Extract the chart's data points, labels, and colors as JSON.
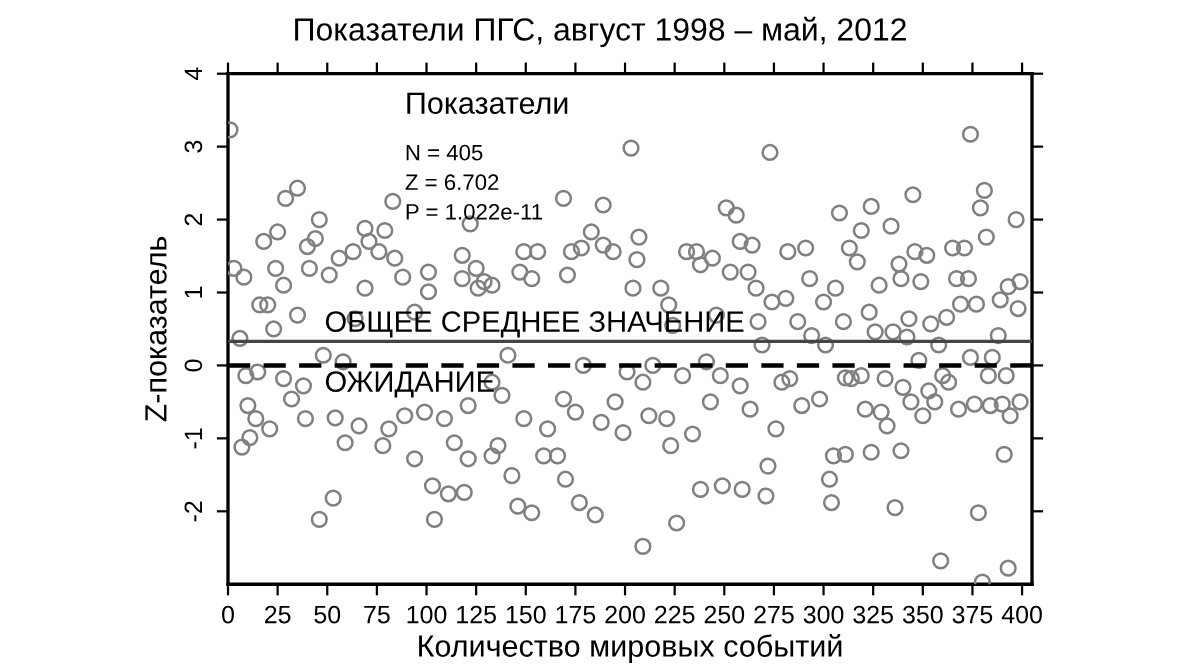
{
  "chart_data": {
    "type": "scatter",
    "title": "Показатели ПГС, август 1998 – май, 2012",
    "xlabel": "Количество мировых событий",
    "ylabel": "Z-показатель",
    "annotations": [
      "Показатели",
      "N = 405",
      "Z = 6.702",
      "P = 1.022e-11"
    ],
    "xlim": [
      0,
      405
    ],
    "xticks": [
      0,
      25,
      50,
      75,
      100,
      125,
      150,
      175,
      200,
      225,
      250,
      275,
      300,
      325,
      350,
      375,
      400
    ],
    "ylim": [
      -3,
      4
    ],
    "yticks": [
      -2,
      -1,
      0,
      1,
      2,
      3,
      4
    ],
    "marker": "circle",
    "grid": false,
    "legend": false,
    "ref_lines": [
      {
        "axis": "y",
        "value": 0.33,
        "label": "ОБЩЕЕ СРЕДНЕЕ ЗНАЧЕНИЕ",
        "color": "#444444",
        "line_style": "solid"
      },
      {
        "axis": "y",
        "value": 0,
        "label": "ОЖИДАНИЕ",
        "color": "#000000",
        "line_style": "dashed"
      }
    ],
    "series": [
      {
        "color": "#808080",
        "x": [
          1,
          3,
          8,
          6,
          7,
          11,
          10,
          14,
          9,
          15,
          16,
          20,
          18,
          23,
          21,
          25,
          24,
          28,
          29,
          28,
          32,
          35,
          35,
          38,
          39,
          40,
          41,
          44,
          46,
          48,
          46,
          51,
          53,
          56,
          54,
          58,
          59,
          63,
          64,
          66,
          69,
          69,
          71,
          76,
          78,
          79,
          81,
          84,
          83,
          88,
          89,
          94,
          94,
          99,
          101,
          101,
          103,
          104,
          109,
          111,
          114,
          118,
          118,
          119,
          121,
          121,
          122,
          125,
          126,
          129,
          133,
          133,
          133,
          138,
          136,
          141,
          143,
          146,
          149,
          147,
          149,
          153,
          153,
          156,
          161,
          159,
          166,
          169,
          169,
          171,
          170,
          173,
          177,
          175,
          178,
          179,
          183,
          185,
          188,
          189,
          189,
          194,
          195,
          199,
          201,
          203,
          204,
          207,
          206,
          209,
          209,
          212,
          214,
          218,
          221,
          223,
          222,
          224,
          226,
          229,
          231,
          234,
          236,
          238,
          238,
          241,
          243,
          244,
          246,
          248,
          249,
          251,
          253,
          256,
          258,
          258,
          259,
          262,
          263,
          264,
          266,
          267,
          269,
          271,
          272,
          273,
          274,
          276,
          279,
          281,
          282,
          283,
          287,
          289,
          291,
          293,
          294,
          298,
          300,
          301,
          303,
          305,
          304,
          308,
          310,
          311,
          313,
          311,
          306,
          314,
          317,
          319,
          319,
          321,
          323,
          324,
          324,
          326,
          328,
          329,
          331,
          332,
          334,
          335,
          336,
          338,
          339,
          339,
          340,
          342,
          343,
          344,
          345,
          346,
          348,
          349,
          350,
          352,
          353,
          354,
          356,
          358,
          359,
          360,
          362,
          363,
          365,
          367,
          368,
          369,
          371,
          373,
          374,
          374,
          376,
          377,
          378,
          379,
          381,
          382,
          383,
          384,
          385,
          388,
          389,
          390,
          391,
          392,
          393,
          393,
          394,
          397,
          398,
          399,
          399,
          380
        ],
        "values": [
          3.23,
          1.33,
          1.21,
          0.37,
          -1.12,
          -0.99,
          -0.55,
          -0.73,
          -0.14,
          -0.09,
          0.83,
          0.83,
          1.7,
          0.5,
          -0.87,
          1.83,
          1.33,
          1.1,
          2.29,
          -0.18,
          -0.46,
          2.43,
          0.69,
          -0.28,
          -0.73,
          1.63,
          1.33,
          1.74,
          2.0,
          0.14,
          -2.11,
          1.24,
          -1.82,
          1.47,
          -0.72,
          0.05,
          -1.06,
          1.56,
          0.64,
          -0.83,
          1.88,
          1.06,
          1.7,
          1.56,
          -1.1,
          1.85,
          -0.87,
          1.47,
          2.25,
          1.21,
          -0.69,
          0.73,
          -1.28,
          -0.64,
          1.28,
          1.01,
          -1.65,
          -2.11,
          -0.73,
          -1.76,
          -1.06,
          1.19,
          1.51,
          -1.74,
          -0.55,
          -1.28,
          1.94,
          1.33,
          1.06,
          1.15,
          1.1,
          -1.24,
          -0.23,
          -0.41,
          -1.1,
          0.14,
          -1.51,
          -1.93,
          1.56,
          1.28,
          -0.73,
          1.19,
          -2.02,
          1.56,
          -0.87,
          -1.24,
          -1.24,
          -0.46,
          2.29,
          1.24,
          -1.56,
          1.56,
          -1.88,
          -0.64,
          1.61,
          0.0,
          1.83,
          -2.05,
          -0.78,
          2.2,
          1.65,
          1.56,
          -0.5,
          -0.92,
          -0.09,
          2.98,
          1.06,
          1.76,
          1.45,
          -2.48,
          -0.23,
          -0.69,
          0.0,
          1.06,
          -0.73,
          -1.1,
          0.83,
          0.55,
          -2.16,
          -0.14,
          1.56,
          -0.94,
          1.56,
          -1.7,
          1.38,
          0.05,
          -0.5,
          1.47,
          0.69,
          -0.14,
          -1.65,
          2.16,
          1.28,
          2.06,
          1.7,
          -0.28,
          -1.7,
          1.28,
          -0.6,
          1.65,
          1.06,
          0.6,
          0.28,
          -1.79,
          -1.38,
          2.92,
          0.87,
          -0.87,
          -0.23,
          0.92,
          1.56,
          -0.18,
          0.6,
          -0.55,
          1.61,
          1.19,
          0.41,
          -0.46,
          0.87,
          0.28,
          -1.56,
          -1.24,
          -1.88,
          2.09,
          0.6,
          -0.17,
          1.61,
          -1.22,
          1.06,
          -0.18,
          1.42,
          -0.14,
          1.85,
          -0.6,
          0.73,
          2.18,
          -1.19,
          0.46,
          1.1,
          -0.64,
          -0.18,
          -0.83,
          1.91,
          0.46,
          -1.95,
          1.39,
          1.19,
          -1.17,
          -0.3,
          0.39,
          0.64,
          -0.5,
          2.34,
          1.56,
          0.07,
          1.15,
          -0.69,
          1.51,
          -0.35,
          0.57,
          -0.5,
          0.28,
          -2.68,
          -0.14,
          0.66,
          -0.23,
          1.61,
          1.19,
          -0.6,
          0.84,
          1.61,
          1.19,
          0.11,
          3.17,
          -0.53,
          0.84,
          -2.02,
          2.16,
          2.4,
          1.76,
          -0.14,
          -0.55,
          0.11,
          0.41,
          0.9,
          -0.53,
          -1.22,
          -0.14,
          1.08,
          -2.78,
          -0.69,
          2.0,
          0.78,
          1.15,
          -0.5,
          -2.97
        ]
      }
    ]
  }
}
